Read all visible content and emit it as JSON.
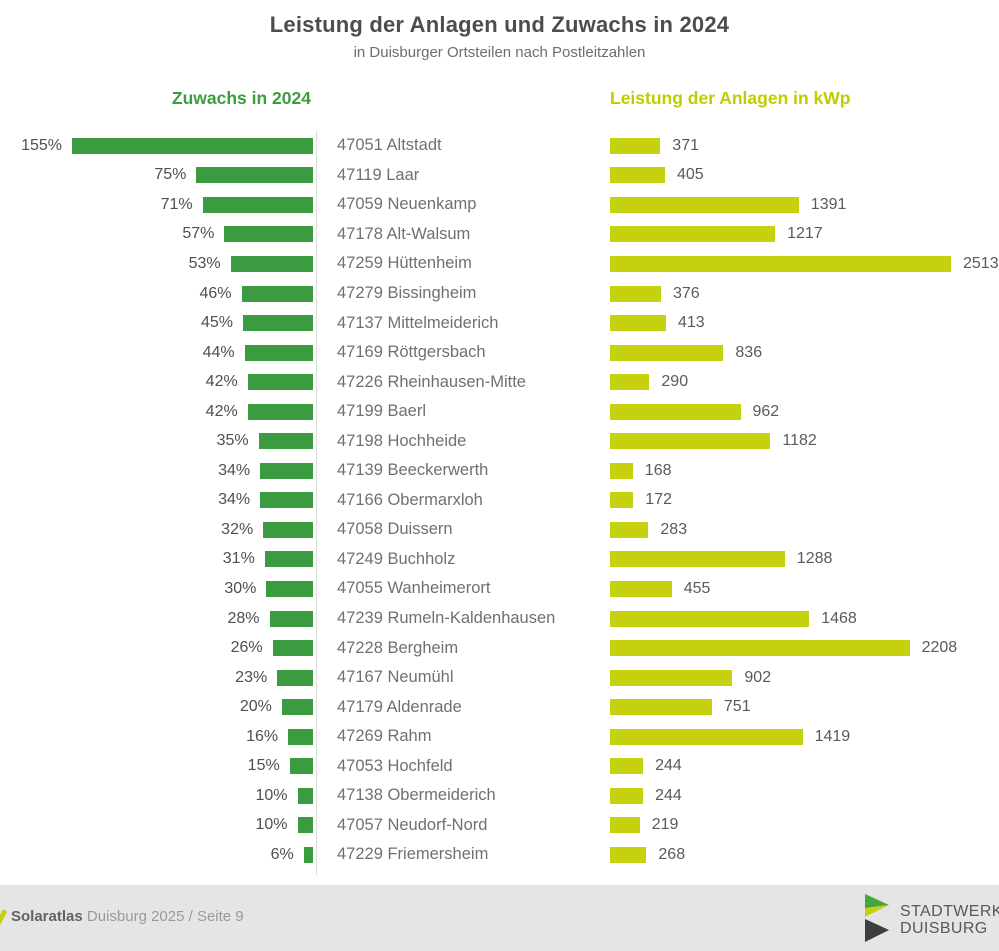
{
  "header": {
    "title": "Leistung der Anlagen und Zuwachs in 2024",
    "subtitle": "in Duisburger Ortsteilen nach Postleitzahlen"
  },
  "columns": {
    "left_header": "Zuwachs in 2024",
    "right_header": "Leistung der Anlagen in kWp"
  },
  "chart_data": {
    "type": "bar",
    "orientation": "bidirectional-horizontal",
    "title": "Leistung der Anlagen und Zuwachs in 2024",
    "subtitle": "in Duisburger Ortsteilen nach Postleitzahlen",
    "categories": [
      "47051 Altstadt",
      "47119 Laar",
      "47059 Neuenkamp",
      "47178 Alt-Walsum",
      "47259 Hüttenheim",
      "47279 Bissingheim",
      "47137 Mittelmeiderich",
      "47169 Röttgersbach",
      "47226 Rheinhausen-Mitte",
      "47199 Baerl",
      "47198 Hochheide",
      "47139 Beeckerwerth",
      "47166 Obermarxloh",
      "47058 Duissern",
      "47249 Buchholz",
      "47055 Wanheimerort",
      "47239 Rumeln-Kaldenhausen",
      "47228 Bergheim",
      "47167 Neumühl",
      "47179 Aldenrade",
      "47269 Rahm",
      "47053 Hochfeld",
      "47138 Obermeiderich",
      "47057 Neudorf-Nord",
      "47229 Friemersheim"
    ],
    "series": [
      {
        "name": "Zuwachs in 2024",
        "unit": "%",
        "direction": "left",
        "color": "#3a9b41",
        "values": [
          155,
          75,
          71,
          57,
          53,
          46,
          45,
          44,
          42,
          42,
          35,
          34,
          34,
          32,
          31,
          30,
          28,
          26,
          23,
          20,
          16,
          15,
          10,
          10,
          6
        ]
      },
      {
        "name": "Leistung der Anlagen in kWp",
        "unit": "kWp",
        "direction": "right",
        "color": "#c5d10e",
        "values": [
          371,
          405,
          1391,
          1217,
          2513,
          376,
          413,
          836,
          290,
          962,
          1182,
          168,
          172,
          283,
          1288,
          455,
          1468,
          2208,
          902,
          751,
          1419,
          244,
          244,
          219,
          268
        ]
      }
    ],
    "value_labels": "shown-at-bar-ends",
    "grid": false,
    "legend_position": "column-headers-above-chart"
  },
  "footer": {
    "brand_bold": "Solaratlas",
    "brand_rest": " Duisburg 2025 / Seite 9",
    "logo_line1": "STADTWERKE",
    "logo_line2": "DUISBURG"
  },
  "colors": {
    "growth_green": "#3a9b41",
    "power_lime": "#c5d10e",
    "left_header_green": "#3a9e3c",
    "right_header_lime": "#c0cc00",
    "title_gray": "#4d4d4d",
    "label_gray": "#707070",
    "footer_background": "#e5e5e5",
    "logo_dark": "#3e3e3d"
  }
}
